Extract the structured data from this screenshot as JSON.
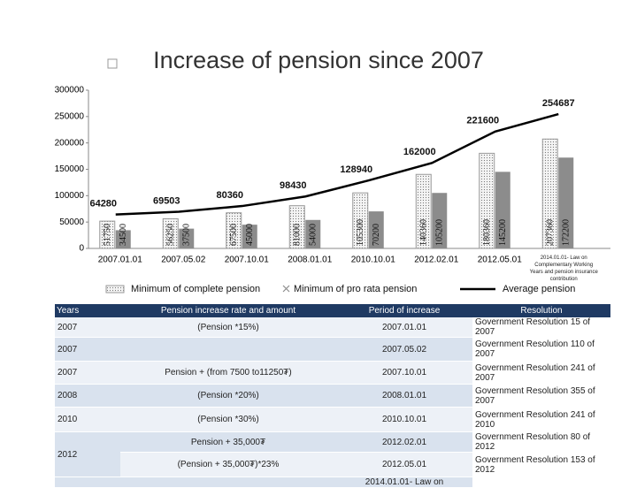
{
  "chart_data": {
    "type": "bar",
    "title": "Increase of pension since 2007",
    "categories": [
      "2007.01.01",
      "2007.05.02",
      "2007.10.01",
      "2008.01.01",
      "2010.10.01",
      "2012.02.01",
      "2012.05.01",
      "2014.01.01- Law on Complementary Working Years and pension insurance contribution"
    ],
    "series": [
      {
        "name": "Minimum of complete pension",
        "color": "#f4f4f4",
        "values": [
          51750,
          56250,
          67500,
          81000,
          105300,
          140360,
          180360,
          207360
        ]
      },
      {
        "name": "Minimum of pro rata pension",
        "color": "#8c8c8c",
        "values": [
          34500,
          37500,
          45000,
          54000,
          70200,
          105200,
          145200,
          172200
        ]
      },
      {
        "name": "Average pension",
        "type": "line",
        "color": "#000000",
        "values": [
          64280,
          69503,
          80360,
          98430,
          128940,
          162000,
          221600,
          254687
        ]
      }
    ],
    "ylim": [
      0,
      300000
    ],
    "yticks": [
      0,
      50000,
      100000,
      150000,
      200000,
      250000,
      300000
    ],
    "grid": false
  },
  "table": {
    "header": [
      "Years",
      "Pension increase rate and amount",
      "Period of increase",
      "Resolution"
    ],
    "rows": [
      {
        "year": "2007",
        "rate": "(Pension *15%)",
        "period": "2007.01.01",
        "resolution": "Government Resolution 15 of 2007"
      },
      {
        "year": "2007",
        "period": "2007.05.02",
        "resolution": "Government Resolution 110 of 2007"
      },
      {
        "year": "2007",
        "rate": "Pension + (from 7500 to11250₮)",
        "period": "2007.10.01",
        "resolution": "Government Resolution 241 of 2007"
      },
      {
        "year": "2008",
        "rate": "(Pension *20%)",
        "period": "2008.01.01",
        "resolution": "Government Resolution 355 of 2007"
      },
      {
        "year": "2010",
        "rate": "(Pension *30%)",
        "period": "2010.10.01",
        "resolution": "Government Resolution 241 of 2010"
      },
      {
        "year": "2012",
        "rate": "Pension + 35,000₮",
        "period": "2012.02.01",
        "resolution": "Government Resolution 80 of 2012"
      },
      {
        "rate": "(Pension + 35,000₮)*23%",
        "period": "2012.05.01",
        "resolution": "Government Resolution 153 of 2012"
      },
      {
        "period": "2014.01.01- Law on"
      }
    ]
  }
}
